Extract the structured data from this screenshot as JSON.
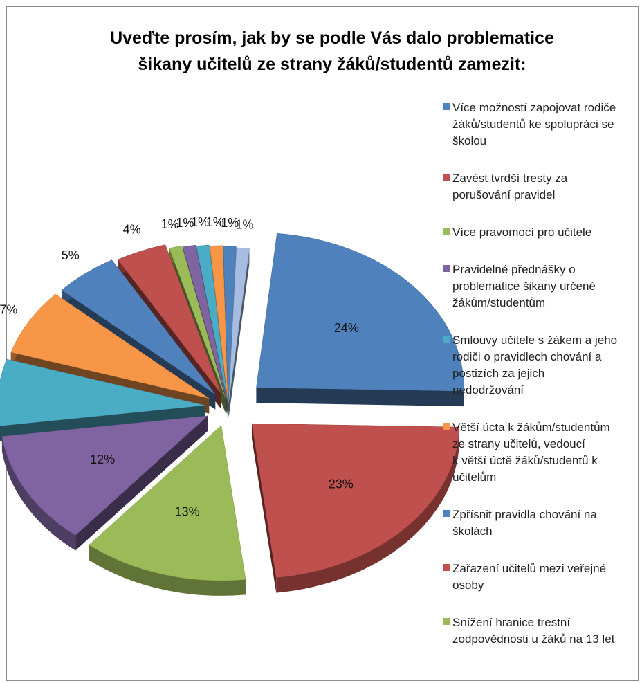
{
  "chart_data": {
    "type": "pie",
    "title": [
      "Uveďte prosím, jak by se podle Vás dalo problematice",
      "šikany učitelů ze strany žáků/studentů zamezit:"
    ],
    "categories": [
      "Více možností zapojovat rodiče žáků/studentů ke spolupráci se školou",
      "Zavést tvrdší tresty za porušování pravidel",
      "Více pravomocí pro učitele",
      "Pravidelné přednášky o problematice šikany určené žákům/studentům",
      "Smlouvy učitele s žákem a jeho rodiči o pravidlech chování a postizích za jejich nedodržování",
      "Větší úcta k žákům/studentům ze strany učitelů, vedoucí k větší úctě žáků/studentů k učitelům",
      "Zpřísnit pravidla chování na školách",
      "Zařazení učitelů mezi veřejné osoby",
      "Snížení hranice trestní zodpovědnosti u žáků na 13 let",
      "",
      "",
      "",
      "",
      ""
    ],
    "values": [
      24,
      23,
      13,
      12,
      7,
      7,
      5,
      4,
      1,
      1,
      1,
      1,
      1,
      1
    ],
    "labels": [
      "24%",
      "23%",
      "13%",
      "12%",
      "7%",
      "7%",
      "5%",
      "4%",
      "1%",
      "1%",
      "1%",
      "1%",
      "1%",
      "1%"
    ],
    "colors": [
      "#4f81bd",
      "#c0504d",
      "#9bbb59",
      "#8064a2",
      "#4bacc6",
      "#f79646",
      "#4f81bd",
      "#c0504d",
      "#9bbb59",
      "#8064a2",
      "#4bacc6",
      "#f79646",
      "#4f81bd",
      "#a6bce0"
    ],
    "legend": [
      [
        "Více možností zapojovat rodiče",
        "žáků/studentů ke spolupráci se",
        "školou"
      ],
      [
        "Zavést tvrdší tresty za",
        "porušování pravidel"
      ],
      [
        "Více pravomocí pro učitele"
      ],
      [
        "Pravidelné přednášky o",
        "problematice šikany určené",
        "žákům/studentům"
      ],
      [
        "Smlouvy učitele s žákem a jeho",
        "rodiči o pravidlech chování a",
        "postizích za jejich",
        "nedodržování"
      ],
      [
        "Větší úcta k žákům/studentům",
        "ze strany učitelů, vedoucí",
        "k větší úctě žáků/studentů k",
        "učitelům"
      ],
      [
        "Zpřísnit pravidla chování na",
        "školách"
      ],
      [
        "Zařazení učitelů mezi veřejné",
        "osoby"
      ],
      [
        "Snížení hranice trestní",
        "zodpovědnosti u žáků na 13 let"
      ]
    ],
    "legend_placement": "right",
    "exploded": true,
    "style": "3d"
  }
}
